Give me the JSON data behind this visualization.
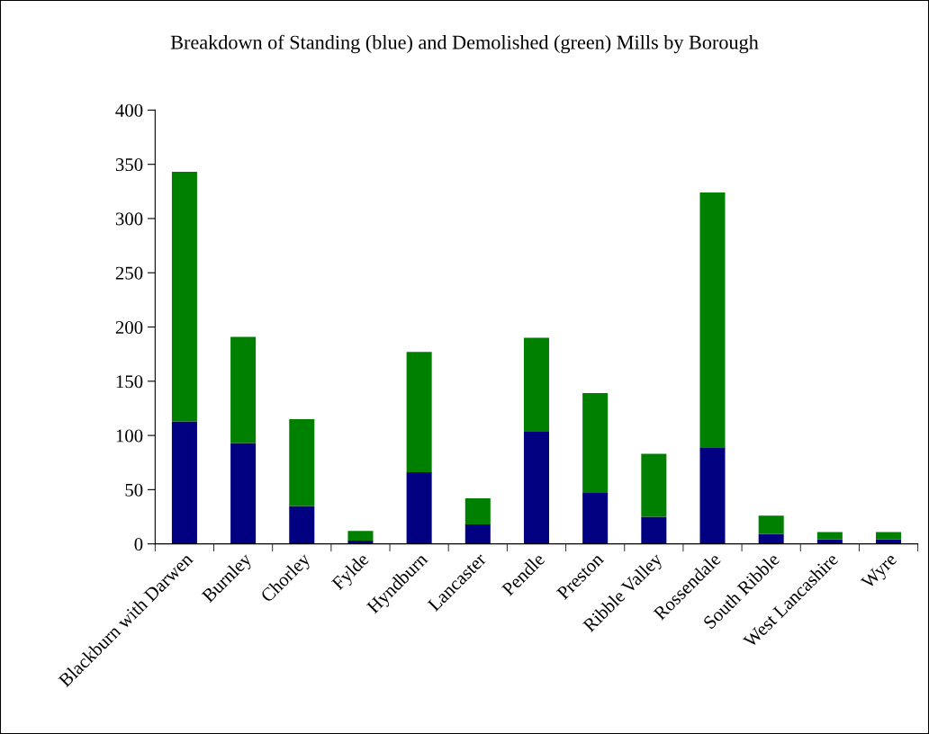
{
  "chart_data": {
    "type": "bar",
    "title": "Breakdown of Standing (blue) and Demolished (green) Mills by Borough",
    "categories": [
      "Blackburn with Darwen",
      "Burnley",
      "Chorley",
      "Fylde",
      "Hyndburn",
      "Lancaster",
      "Pendle",
      "Preston",
      "Ribble Valley",
      "Rossendale",
      "South Ribble",
      "West Lancashire",
      "Wyre"
    ],
    "stacked": true,
    "series": [
      {
        "color": "#000080",
        "values": [
          113,
          93,
          35,
          3,
          66,
          18,
          104,
          47,
          25,
          89,
          9,
          4,
          4
        ]
      },
      {
        "color": "#008000",
        "values": [
          230,
          98,
          80,
          9,
          111,
          24,
          86,
          92,
          58,
          235,
          17,
          7,
          7
        ]
      }
    ],
    "ylim": [
      0,
      400
    ],
    "yticks": [
      0,
      50,
      100,
      150,
      200,
      250,
      300,
      350,
      400
    ],
    "grid": false,
    "legend": false
  }
}
